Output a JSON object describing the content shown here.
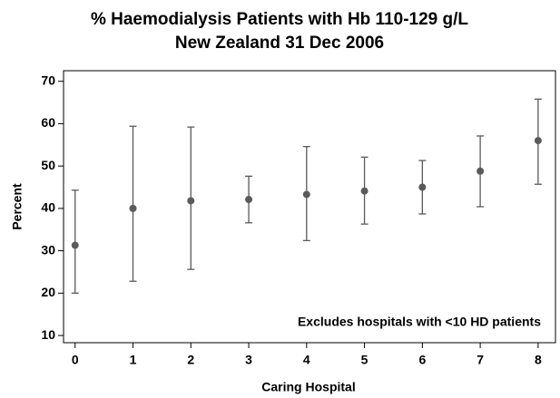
{
  "chart_data": {
    "type": "errorbar",
    "title": "% Haemodialysis Patients with Hb 110-129 g/L",
    "subtitle": "New Zealand  31 Dec 2006",
    "xlabel": "Caring Hospital",
    "ylabel": "Percent",
    "annotation": "Excludes hospitals with <10 HD patients",
    "x": [
      0,
      1,
      2,
      3,
      4,
      5,
      6,
      7,
      8
    ],
    "series": [
      {
        "color": "#5a5a5a",
        "values": [
          31.3,
          40.0,
          41.8,
          42.1,
          43.3,
          44.1,
          45.0,
          48.8,
          56.0
        ],
        "lower": [
          20.0,
          22.8,
          25.6,
          36.6,
          32.4,
          36.3,
          38.7,
          40.4,
          45.7
        ],
        "upper": [
          44.3,
          59.4,
          59.2,
          47.6,
          54.6,
          52.1,
          51.3,
          57.1,
          65.8
        ]
      }
    ],
    "xlim": [
      -0.2,
      8.3
    ],
    "ylim": [
      8.3,
      72.5
    ],
    "xticks": [
      0,
      1,
      2,
      3,
      4,
      5,
      6,
      7,
      8
    ],
    "yticks": [
      10,
      20,
      30,
      40,
      50,
      60,
      70
    ],
    "grid": false
  }
}
